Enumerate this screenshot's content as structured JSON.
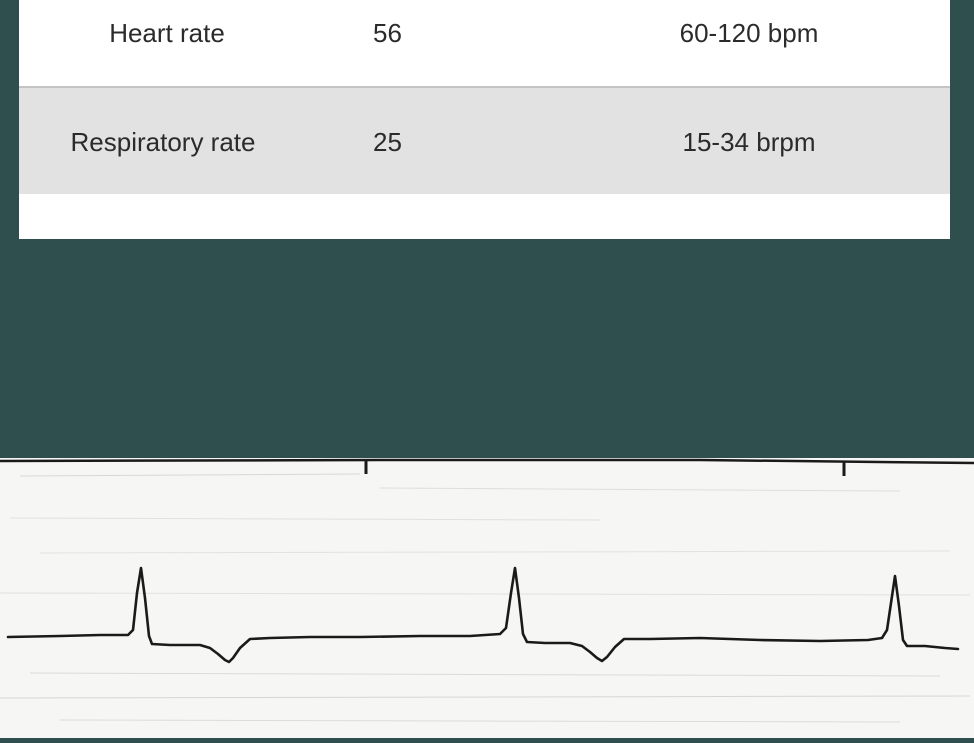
{
  "vitals_table": {
    "rows": [
      {
        "parameter": "Heart rate",
        "value": "56",
        "range": "60-120 bpm"
      },
      {
        "parameter": "Respiratory rate",
        "value": "25",
        "range": "15-34 brpm"
      }
    ]
  },
  "ecg_strip": {
    "waveform": "ecg-trace",
    "colors": {
      "background": "#2e4f4e",
      "paper": "#f6f6f4",
      "trace": "#1a1a1a"
    }
  }
}
